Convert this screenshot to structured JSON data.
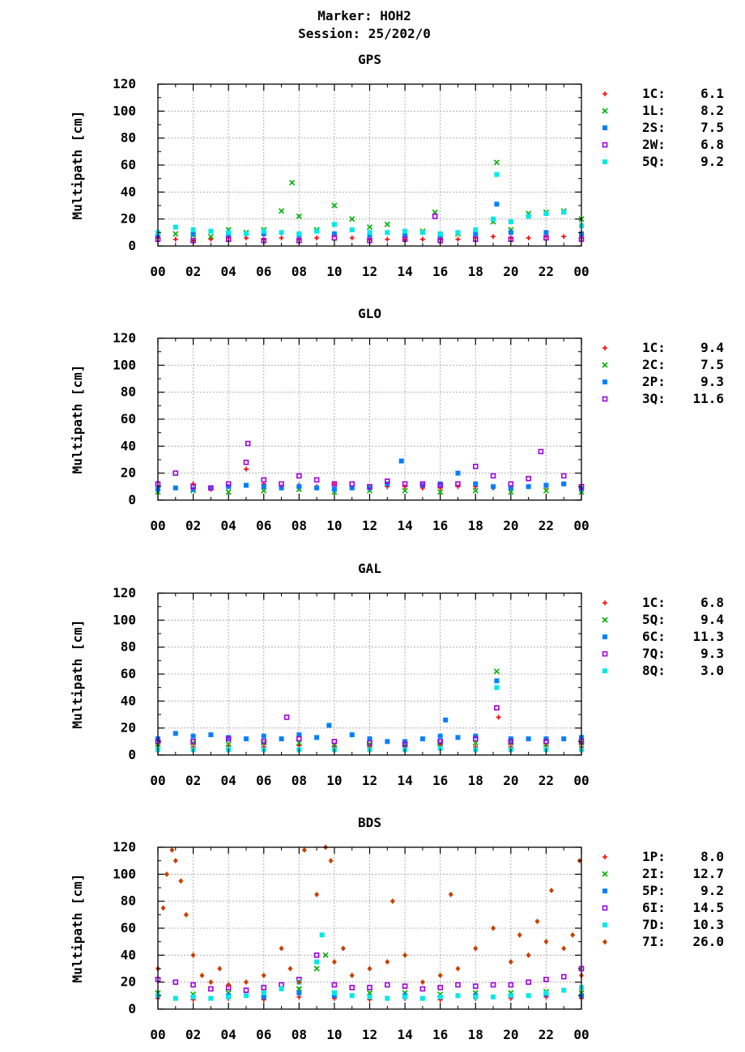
{
  "header": {
    "marker_line": "Marker: HOH2",
    "session_line": "Session: 25/202/0"
  },
  "chart_data": [
    {
      "type": "scatter",
      "title": "GPS",
      "xlabel": "",
      "ylabel": "Multipath [cm]",
      "xlim": [
        0,
        24
      ],
      "ylim": [
        0,
        120
      ],
      "x_ticks": [
        "00",
        "02",
        "04",
        "06",
        "08",
        "10",
        "12",
        "14",
        "16",
        "18",
        "20",
        "22",
        "00"
      ],
      "y_ticks": [
        0,
        20,
        40,
        60,
        80,
        100,
        120
      ],
      "grid": true,
      "legend_position": "right",
      "series": [
        {
          "name": "1C:",
          "rms": "6.1",
          "color": "#ff0000",
          "marker": "plus",
          "x": [
            0,
            1,
            2,
            3,
            4,
            5,
            6,
            7,
            8,
            9,
            10,
            11,
            12,
            13,
            14,
            15,
            16,
            17,
            18,
            19,
            20,
            21,
            22,
            23,
            24
          ],
          "y": [
            6,
            5,
            4,
            5,
            6,
            6,
            5,
            6,
            5,
            6,
            8,
            6,
            5,
            5,
            5,
            5,
            5,
            5,
            6,
            7,
            6,
            6,
            7,
            7,
            6
          ]
        },
        {
          "name": "1L:",
          "rms": "8.2",
          "color": "#00b000",
          "marker": "cross",
          "x": [
            0,
            1,
            2,
            3,
            4,
            5,
            6,
            7,
            7.6,
            8,
            9,
            10,
            11,
            12,
            13,
            14,
            15,
            15.7,
            16,
            17,
            18,
            19,
            19.2,
            20,
            21,
            22,
            23,
            24
          ],
          "y": [
            7,
            9,
            8,
            7,
            12,
            10,
            12,
            26,
            47,
            22,
            12,
            30,
            20,
            14,
            16,
            10,
            11,
            25,
            8,
            9,
            9,
            18,
            62,
            12,
            24,
            25,
            26,
            20
          ]
        },
        {
          "name": "2S:",
          "rms": "7.5",
          "color": "#0080ff",
          "marker": "square",
          "x": [
            0,
            2,
            4,
            6,
            8,
            10,
            12,
            14,
            16,
            18,
            19.2,
            20,
            22,
            24
          ],
          "y": [
            8,
            9,
            8,
            9,
            8,
            9,
            8,
            8,
            8,
            9,
            31,
            10,
            10,
            9
          ]
        },
        {
          "name": "2W:",
          "rms": "6.8",
          "color": "#a000e0",
          "marker": "open-square",
          "x": [
            0,
            2,
            4,
            6,
            8,
            10,
            12,
            14,
            15.7,
            16,
            18,
            20,
            22,
            24
          ],
          "y": [
            5,
            4,
            5,
            4,
            4,
            6,
            4,
            5,
            22,
            4,
            5,
            5,
            6,
            5
          ]
        },
        {
          "name": "5Q:",
          "rms": "9.2",
          "color": "#00e8e8",
          "marker": "square",
          "x": [
            0,
            1,
            2,
            3,
            4,
            5,
            6,
            7,
            8,
            9,
            10,
            11,
            12,
            13,
            14,
            15,
            16,
            17,
            18,
            19,
            19.2,
            20,
            21,
            22,
            23,
            24
          ],
          "y": [
            10,
            14,
            12,
            11,
            10,
            9,
            11,
            10,
            9,
            11,
            16,
            12,
            10,
            10,
            11,
            10,
            9,
            10,
            12,
            20,
            53,
            18,
            22,
            24,
            25,
            15
          ]
        }
      ]
    },
    {
      "type": "scatter",
      "title": "GLO",
      "xlabel": "",
      "ylabel": "Multipath [cm]",
      "xlim": [
        0,
        24
      ],
      "ylim": [
        0,
        120
      ],
      "x_ticks": [
        "00",
        "02",
        "04",
        "06",
        "08",
        "10",
        "12",
        "14",
        "16",
        "18",
        "20",
        "22",
        "00"
      ],
      "y_ticks": [
        0,
        20,
        40,
        60,
        80,
        100,
        120
      ],
      "grid": true,
      "legend_position": "right",
      "series": [
        {
          "name": "1C:",
          "rms": "9.4",
          "color": "#ff0000",
          "marker": "plus",
          "x": [
            0,
            1,
            2,
            3,
            4,
            5,
            6,
            7,
            8,
            9,
            10,
            11,
            12,
            13,
            14,
            15,
            16,
            17,
            18,
            19,
            20,
            21,
            22,
            23,
            24
          ],
          "y": [
            8,
            9,
            12,
            8,
            10,
            23,
            12,
            10,
            11,
            10,
            12,
            9,
            9,
            10,
            10,
            9,
            9,
            10,
            10,
            9,
            9,
            10,
            10,
            12,
            9
          ]
        },
        {
          "name": "2C:",
          "rms": "7.5",
          "color": "#00b000",
          "marker": "cross",
          "x": [
            0,
            2,
            4,
            6,
            8,
            10,
            12,
            14,
            16,
            18,
            20,
            22,
            24
          ],
          "y": [
            6,
            7,
            6,
            7,
            8,
            6,
            7,
            7,
            6,
            7,
            6,
            7,
            6
          ]
        },
        {
          "name": "2P:",
          "rms": "9.3",
          "color": "#0080ff",
          "marker": "square",
          "x": [
            0,
            1,
            2,
            3,
            4,
            5,
            6,
            7,
            8,
            9,
            10,
            11,
            12,
            13,
            13.8,
            15,
            16,
            17,
            18,
            19,
            20,
            21,
            22,
            23,
            24
          ],
          "y": [
            8,
            9,
            8,
            9,
            10,
            11,
            10,
            9,
            10,
            9,
            8,
            9,
            9,
            12,
            29,
            11,
            12,
            20,
            12,
            10,
            9,
            10,
            11,
            12,
            8
          ]
        },
        {
          "name": "3Q:",
          "rms": "11.6",
          "color": "#a000e0",
          "marker": "open-square",
          "x": [
            0,
            1,
            2,
            3,
            4,
            5,
            5.1,
            6,
            7,
            8,
            9,
            10,
            11,
            12,
            13,
            14,
            15,
            16,
            17,
            18,
            19,
            20,
            21,
            21.7,
            23,
            24
          ],
          "y": [
            12,
            20,
            10,
            9,
            12,
            28,
            42,
            15,
            12,
            18,
            15,
            12,
            12,
            10,
            14,
            12,
            12,
            11,
            12,
            25,
            18,
            12,
            16,
            36,
            18,
            10
          ]
        }
      ]
    },
    {
      "type": "scatter",
      "title": "GAL",
      "xlabel": "",
      "ylabel": "Multipath [cm]",
      "xlim": [
        0,
        24
      ],
      "ylim": [
        0,
        120
      ],
      "x_ticks": [
        "00",
        "02",
        "04",
        "06",
        "08",
        "10",
        "12",
        "14",
        "16",
        "18",
        "20",
        "22",
        "00"
      ],
      "y_ticks": [
        0,
        20,
        40,
        60,
        80,
        100,
        120
      ],
      "grid": true,
      "legend_position": "right",
      "series": [
        {
          "name": "1C:",
          "rms": "6.8",
          "color": "#ff0000",
          "marker": "plus",
          "x": [
            0,
            2,
            4,
            6,
            8,
            10,
            12,
            14,
            16,
            18,
            19.3,
            20,
            22,
            24
          ],
          "y": [
            7,
            6,
            7,
            6,
            7,
            6,
            6,
            6,
            7,
            6,
            28,
            6,
            7,
            6
          ]
        },
        {
          "name": "5Q:",
          "rms": "9.4",
          "color": "#00b000",
          "marker": "cross",
          "x": [
            0,
            2,
            4,
            6,
            8,
            10,
            12,
            14,
            16,
            18,
            19.2,
            20,
            22,
            24
          ],
          "y": [
            8,
            9,
            8,
            9,
            9,
            8,
            8,
            8,
            9,
            9,
            62,
            9,
            8,
            9
          ]
        },
        {
          "name": "6C:",
          "rms": "11.3",
          "color": "#0080ff",
          "marker": "square",
          "x": [
            0,
            1,
            2,
            3,
            4,
            5,
            6,
            7,
            8,
            9,
            9.7,
            11,
            12,
            13,
            14,
            15,
            16,
            16.3,
            17,
            18,
            19.2,
            20,
            21,
            22,
            23,
            24
          ],
          "y": [
            12,
            16,
            14,
            15,
            13,
            12,
            14,
            12,
            15,
            13,
            22,
            15,
            12,
            10,
            10,
            12,
            14,
            26,
            13,
            14,
            55,
            12,
            12,
            12,
            12,
            13
          ]
        },
        {
          "name": "7Q:",
          "rms": "9.3",
          "color": "#a000e0",
          "marker": "open-square",
          "x": [
            0,
            2,
            4,
            6,
            7.3,
            8,
            10,
            12,
            14,
            16,
            18,
            19.2,
            20,
            22,
            24
          ],
          "y": [
            10,
            10,
            12,
            10,
            28,
            12,
            10,
            9,
            8,
            10,
            12,
            35,
            10,
            10,
            10
          ]
        },
        {
          "name": "8Q:",
          "rms": "3.0",
          "color": "#00e8e8",
          "marker": "square",
          "x": [
            0,
            2,
            4,
            6,
            8,
            10,
            12,
            14,
            16,
            18,
            19.2,
            20,
            22,
            24
          ],
          "y": [
            4,
            4,
            4,
            4,
            4,
            4,
            4,
            4,
            5,
            4,
            50,
            4,
            4,
            4
          ]
        }
      ]
    },
    {
      "type": "scatter",
      "title": "BDS",
      "xlabel": "",
      "ylabel": "Multipath [cm]",
      "xlim": [
        0,
        24
      ],
      "ylim": [
        0,
        120
      ],
      "x_ticks": [
        "00",
        "02",
        "04",
        "06",
        "08",
        "10",
        "12",
        "14",
        "16",
        "18",
        "20",
        "22",
        "00"
      ],
      "y_ticks": [
        0,
        20,
        40,
        60,
        80,
        100,
        120
      ],
      "grid": true,
      "legend_position": "right",
      "series": [
        {
          "name": "1P:",
          "rms": "8.0",
          "color": "#ff0000",
          "marker": "plus",
          "x": [
            0,
            2,
            4,
            6,
            8,
            10,
            12,
            14,
            16,
            18,
            20,
            22,
            24
          ],
          "y": [
            8,
            7,
            8,
            7,
            9,
            8,
            7,
            8,
            7,
            8,
            8,
            9,
            8
          ]
        },
        {
          "name": "2I:",
          "rms": "12.7",
          "color": "#00b000",
          "marker": "cross",
          "x": [
            0,
            2,
            4,
            6,
            8,
            9,
            9.5,
            10,
            12,
            14,
            16,
            18,
            20,
            22,
            24
          ],
          "y": [
            12,
            11,
            12,
            11,
            15,
            30,
            40,
            12,
            12,
            12,
            11,
            12,
            12,
            13,
            12
          ]
        },
        {
          "name": "5P:",
          "rms": "9.2",
          "color": "#0080ff",
          "marker": "square",
          "x": [
            0,
            2,
            4,
            6,
            8,
            10,
            12,
            14,
            16,
            18,
            20,
            22,
            24
          ],
          "y": [
            10,
            9,
            10,
            9,
            12,
            10,
            9,
            10,
            9,
            10,
            10,
            11,
            10
          ]
        },
        {
          "name": "6I:",
          "rms": "14.5",
          "color": "#a000e0",
          "marker": "open-square",
          "x": [
            0,
            1,
            2,
            3,
            4,
            5,
            6,
            7,
            8,
            9,
            10,
            11,
            12,
            13,
            14,
            15,
            16,
            17,
            18,
            19,
            20,
            21,
            22,
            23,
            24
          ],
          "y": [
            22,
            20,
            18,
            15,
            16,
            14,
            16,
            18,
            22,
            40,
            18,
            16,
            16,
            18,
            17,
            15,
            16,
            18,
            17,
            18,
            18,
            20,
            22,
            24,
            30
          ]
        },
        {
          "name": "7D:",
          "rms": "10.3",
          "color": "#00e8e8",
          "marker": "square",
          "x": [
            0,
            1,
            2,
            3,
            4,
            5,
            6,
            7,
            8,
            9,
            9.3,
            10,
            11,
            12,
            13,
            14,
            15,
            16,
            17,
            18,
            19,
            20,
            21,
            22,
            23,
            24
          ],
          "y": [
            10,
            8,
            9,
            8,
            9,
            10,
            12,
            15,
            20,
            35,
            55,
            12,
            10,
            9,
            8,
            9,
            8,
            9,
            10,
            9,
            9,
            10,
            10,
            12,
            14,
            16
          ]
        },
        {
          "name": "7I:",
          "rms": "26.0",
          "color": "#c84000",
          "marker": "diamond",
          "x": [
            0,
            0.3,
            0.5,
            0.8,
            1.0,
            1.3,
            1.6,
            2.0,
            2.5,
            3.0,
            3.5,
            4.0,
            5.0,
            6.0,
            7.0,
            7.5,
            8.0,
            8.3,
            9.0,
            9.5,
            9.8,
            10.0,
            10.5,
            11.0,
            12.0,
            13.0,
            13.3,
            14.0,
            15.0,
            16.0,
            16.6,
            17.0,
            18.0,
            19.0,
            20.0,
            20.5,
            21.0,
            21.5,
            22.0,
            22.3,
            23.0,
            23.5,
            23.9,
            24.0
          ],
          "y": [
            30,
            75,
            100,
            118,
            110,
            95,
            70,
            40,
            25,
            20,
            30,
            18,
            20,
            25,
            45,
            30,
            20,
            118,
            85,
            120,
            110,
            35,
            45,
            25,
            30,
            35,
            80,
            40,
            20,
            25,
            85,
            30,
            45,
            60,
            35,
            55,
            40,
            65,
            50,
            88,
            45,
            55,
            110,
            25
          ]
        }
      ]
    }
  ]
}
